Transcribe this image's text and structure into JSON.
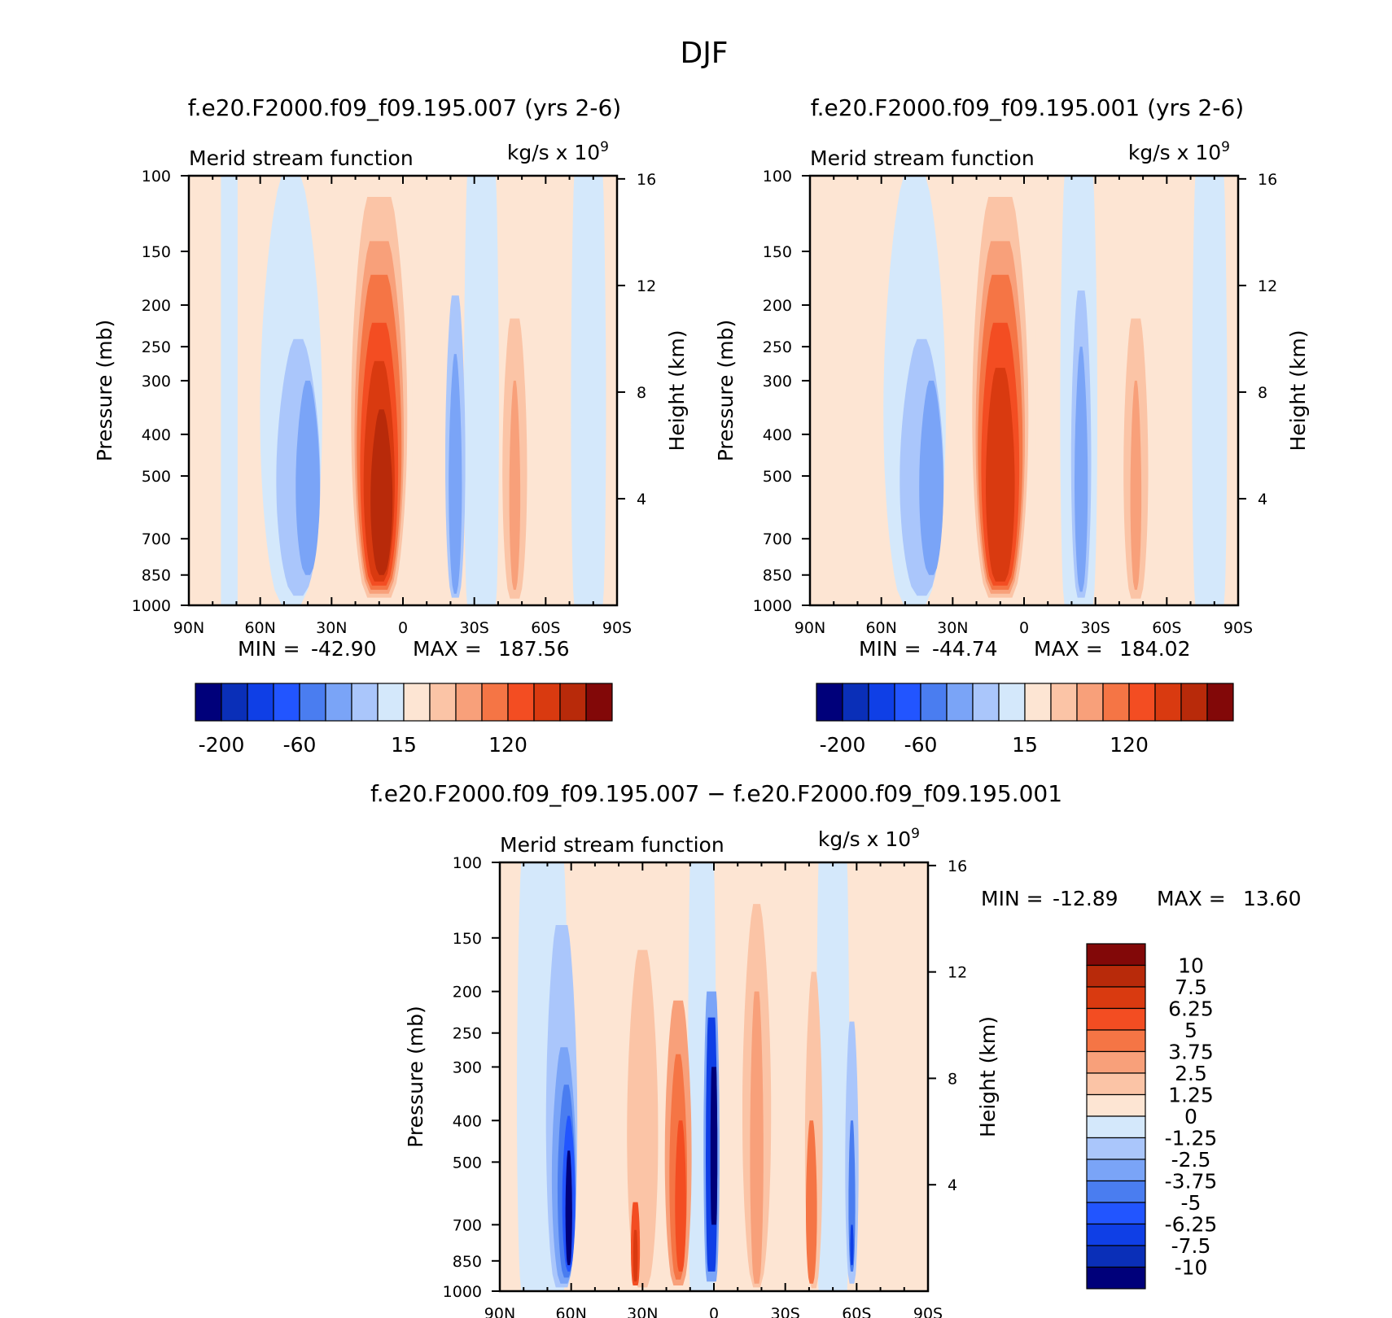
{
  "figure": {
    "title": "DJF"
  },
  "palettes": {
    "main": [
      "#00007a",
      "#0a2fb8",
      "#0f3fe6",
      "#2255ff",
      "#4a7df0",
      "#7aa4f7",
      "#aac6fb",
      "#d4e8fb",
      "#fde5d3",
      "#fbc4a6",
      "#f8a07a",
      "#f57545",
      "#f34d22",
      "#d93a10",
      "#b82a0a",
      "#820808"
    ],
    "diff": [
      "#00007a",
      "#0a2fb8",
      "#0f3fe6",
      "#2255ff",
      "#4a7df0",
      "#7aa4f7",
      "#aac6fb",
      "#d4e8fb",
      "#fde5d3",
      "#fbc4a6",
      "#f8a07a",
      "#f57545",
      "#f34d22",
      "#d93a10",
      "#b82a0a",
      "#820808"
    ]
  },
  "chart_data": [
    {
      "type": "contour",
      "title": "f.e20.F2000.f09_f09.195.007 (yrs 2-6)",
      "left_label": "Merid stream function",
      "units_text": "kg/s x 10",
      "units_exp": "9",
      "xlabel": "",
      "ylabel": "Pressure (mb)",
      "ylabel_right": "Height (km)",
      "x_ticks": [
        "90N",
        "60N",
        "30N",
        "0",
        "30S",
        "60S",
        "90S"
      ],
      "x_values": [
        90,
        60,
        30,
        0,
        -30,
        -60,
        -90
      ],
      "y_ticks": [
        "100",
        "150",
        "200",
        "250",
        "300",
        "400",
        "500",
        "700",
        "850",
        "1000"
      ],
      "y_values": [
        100,
        150,
        200,
        250,
        300,
        400,
        500,
        700,
        850,
        1000
      ],
      "height_ticks": [
        "16",
        "12",
        "8",
        "4"
      ],
      "height_values": [
        16,
        12,
        8,
        4
      ],
      "ylim": [
        1000,
        100
      ],
      "min_label": "MIN =",
      "min_value": "-42.90",
      "max_label": "MAX =",
      "max_value": "187.56",
      "colorbar_labels": [
        "-200",
        "-60",
        "15",
        "120"
      ],
      "cells": [
        {
          "lat": 73,
          "w": 7,
          "top": 100,
          "bot": 1000,
          "idx": 7,
          "top_w": 7,
          "exp": 1
        },
        {
          "lat": 47,
          "w": 28,
          "top": 100,
          "bot": 1000,
          "idx": 7,
          "top_w": 8,
          "exp": 1.5
        },
        {
          "lat": 44,
          "w": 20,
          "top": 240,
          "bot": 950,
          "idx": 6,
          "top_w": 4,
          "exp": 1.3
        },
        {
          "lat": 40,
          "w": 11,
          "top": 300,
          "bot": 850,
          "idx": 5,
          "top_w": 2,
          "exp": 1.3
        },
        {
          "lat": 12,
          "w": 32,
          "top": 100,
          "bot": 1000,
          "idx": 8,
          "top_w": 30,
          "exp": 1
        },
        {
          "lat": 10,
          "w": 25,
          "top": 112,
          "bot": 960,
          "idx": 9,
          "top_w": 10,
          "exp": 1.5
        },
        {
          "lat": 10,
          "w": 22,
          "top": 142,
          "bot": 940,
          "idx": 10,
          "top_w": 8,
          "exp": 1.5
        },
        {
          "lat": 10,
          "w": 20,
          "top": 170,
          "bot": 920,
          "idx": 11,
          "top_w": 7,
          "exp": 1.5
        },
        {
          "lat": 10,
          "w": 17,
          "top": 220,
          "bot": 900,
          "idx": 12,
          "top_w": 6,
          "exp": 1.6
        },
        {
          "lat": 10,
          "w": 14,
          "top": 270,
          "bot": 880,
          "idx": 13,
          "top_w": 4,
          "exp": 1.6
        },
        {
          "lat": 9,
          "w": 10,
          "top": 350,
          "bot": 850,
          "idx": 14,
          "top_w": 2,
          "exp": 1.5
        },
        {
          "lat": -33,
          "w": 15,
          "top": 100,
          "bot": 1000,
          "idx": 7,
          "top_w": 12,
          "exp": 1
        },
        {
          "lat": -22,
          "w": 9,
          "top": 190,
          "bot": 960,
          "idx": 6,
          "top_w": 3,
          "exp": 1.4
        },
        {
          "lat": -22,
          "w": 6,
          "top": 260,
          "bot": 940,
          "idx": 5,
          "top_w": 1,
          "exp": 1.4
        },
        {
          "lat": -47,
          "w": 11,
          "top": 215,
          "bot": 965,
          "idx": 9,
          "top_w": 4,
          "exp": 1.4
        },
        {
          "lat": -47,
          "w": 5,
          "top": 300,
          "bot": 920,
          "idx": 10,
          "top_w": 1,
          "exp": 1.3
        },
        {
          "lat": -78,
          "w": 15,
          "top": 100,
          "bot": 1000,
          "idx": 7,
          "top_w": 12,
          "exp": 1
        }
      ]
    },
    {
      "type": "contour",
      "title": "f.e20.F2000.f09_f09.195.001 (yrs 2-6)",
      "left_label": "Merid stream function",
      "units_text": "kg/s x 10",
      "units_exp": "9",
      "xlabel": "",
      "ylabel": "Pressure (mb)",
      "ylabel_right": "Height (km)",
      "x_ticks": [
        "90N",
        "60N",
        "30N",
        "0",
        "30S",
        "60S",
        "90S"
      ],
      "x_values": [
        90,
        60,
        30,
        0,
        -30,
        -60,
        -90
      ],
      "y_ticks": [
        "100",
        "150",
        "200",
        "250",
        "300",
        "400",
        "500",
        "700",
        "850",
        "1000"
      ],
      "y_values": [
        100,
        150,
        200,
        250,
        300,
        400,
        500,
        700,
        850,
        1000
      ],
      "height_ticks": [
        "16",
        "12",
        "8",
        "4"
      ],
      "height_values": [
        16,
        12,
        8,
        4
      ],
      "ylim": [
        1000,
        100
      ],
      "min_label": "MIN =",
      "min_value": "-44.74",
      "max_label": "MAX =",
      "max_value": "184.02",
      "colorbar_labels": [
        "-200",
        "-60",
        "15",
        "120"
      ],
      "cells": [
        {
          "lat": 46,
          "w": 28,
          "top": 100,
          "bot": 1000,
          "idx": 7,
          "top_w": 9,
          "exp": 1.5
        },
        {
          "lat": 43,
          "w": 20,
          "top": 240,
          "bot": 950,
          "idx": 6,
          "top_w": 4,
          "exp": 1.3
        },
        {
          "lat": 39,
          "w": 11,
          "top": 300,
          "bot": 850,
          "idx": 5,
          "top_w": 2,
          "exp": 1.3
        },
        {
          "lat": 11,
          "w": 32,
          "top": 100,
          "bot": 1000,
          "idx": 8,
          "top_w": 30,
          "exp": 1
        },
        {
          "lat": 10,
          "w": 25,
          "top": 112,
          "bot": 960,
          "idx": 9,
          "top_w": 10,
          "exp": 1.5
        },
        {
          "lat": 10,
          "w": 22,
          "top": 142,
          "bot": 940,
          "idx": 10,
          "top_w": 8,
          "exp": 1.5
        },
        {
          "lat": 10,
          "w": 20,
          "top": 170,
          "bot": 920,
          "idx": 11,
          "top_w": 7,
          "exp": 1.5
        },
        {
          "lat": 10,
          "w": 17,
          "top": 220,
          "bot": 900,
          "idx": 12,
          "top_w": 6,
          "exp": 1.6
        },
        {
          "lat": 10,
          "w": 13,
          "top": 280,
          "bot": 880,
          "idx": 13,
          "top_w": 4,
          "exp": 1.6
        },
        {
          "lat": -23,
          "w": 16,
          "top": 100,
          "bot": 1000,
          "idx": 7,
          "top_w": 12,
          "exp": 1
        },
        {
          "lat": -24,
          "w": 9,
          "top": 185,
          "bot": 960,
          "idx": 6,
          "top_w": 3,
          "exp": 1.4
        },
        {
          "lat": -24,
          "w": 6,
          "top": 250,
          "bot": 930,
          "idx": 5,
          "top_w": 1,
          "exp": 1.4
        },
        {
          "lat": -47,
          "w": 11,
          "top": 215,
          "bot": 965,
          "idx": 9,
          "top_w": 4,
          "exp": 1.4
        },
        {
          "lat": -47,
          "w": 5,
          "top": 300,
          "bot": 920,
          "idx": 10,
          "top_w": 1,
          "exp": 1.3
        },
        {
          "lat": -78,
          "w": 15,
          "top": 100,
          "bot": 1000,
          "idx": 7,
          "top_w": 12,
          "exp": 1
        }
      ]
    },
    {
      "type": "contour",
      "title": "f.e20.F2000.f09_f09.195.007 − f.e20.F2000.f09_f09.195.001",
      "left_label": "Merid stream function",
      "units_text": "kg/s x 10",
      "units_exp": "9",
      "xlabel": "",
      "ylabel": "Pressure (mb)",
      "ylabel_right": "Height (km)",
      "x_ticks": [
        "90N",
        "60N",
        "30N",
        "0",
        "30S",
        "60S",
        "90S"
      ],
      "x_values": [
        90,
        60,
        30,
        0,
        -30,
        -60,
        -90
      ],
      "y_ticks": [
        "100",
        "150",
        "200",
        "250",
        "300",
        "400",
        "500",
        "700",
        "850",
        "1000"
      ],
      "y_values": [
        100,
        150,
        200,
        250,
        300,
        400,
        500,
        700,
        850,
        1000
      ],
      "height_ticks": [
        "16",
        "12",
        "8",
        "4"
      ],
      "height_values": [
        16,
        12,
        8,
        4
      ],
      "ylim": [
        1000,
        100
      ],
      "min_label": "MIN =",
      "min_value": "-12.89",
      "max_label": "MAX =",
      "max_value": "13.60",
      "colorbar_labels": [
        "10",
        "7.5",
        "6.25",
        "5",
        "3.75",
        "2.5",
        "1.25",
        "0",
        "-1.25",
        "-2.5",
        "-3.75",
        "-5",
        "-6.25",
        "-7.5",
        "-10"
      ],
      "cells": [
        {
          "lat": 72,
          "w": 22,
          "top": 100,
          "bot": 1000,
          "idx": 7,
          "top_w": 18,
          "exp": 1
        },
        {
          "lat": 64,
          "w": 14,
          "top": 140,
          "bot": 980,
          "idx": 6,
          "top_w": 5,
          "exp": 1.4
        },
        {
          "lat": 63,
          "w": 11,
          "top": 270,
          "bot": 960,
          "idx": 5,
          "top_w": 3,
          "exp": 1.3
        },
        {
          "lat": 62,
          "w": 8,
          "top": 330,
          "bot": 930,
          "idx": 4,
          "top_w": 2,
          "exp": 1.3
        },
        {
          "lat": 61,
          "w": 6,
          "top": 390,
          "bot": 900,
          "idx": 3,
          "top_w": 1,
          "exp": 1.3
        },
        {
          "lat": 61,
          "w": 3,
          "top": 470,
          "bot": 870,
          "idx": 0,
          "top_w": 1,
          "exp": 1.2
        },
        {
          "lat": 5,
          "w": 12,
          "top": 100,
          "bot": 1000,
          "idx": 7,
          "top_w": 10,
          "exp": 1
        },
        {
          "lat": 1,
          "w": 7,
          "top": 200,
          "bot": 950,
          "idx": 5,
          "top_w": 4,
          "exp": 1.3
        },
        {
          "lat": 1,
          "w": 5,
          "top": 230,
          "bot": 900,
          "idx": 2,
          "top_w": 3,
          "exp": 1.3
        },
        {
          "lat": 0,
          "w": 3,
          "top": 300,
          "bot": 700,
          "idx": 0,
          "top_w": 2,
          "exp": 1.2
        },
        {
          "lat": -50,
          "w": 14,
          "top": 100,
          "bot": 1000,
          "idx": 7,
          "top_w": 12,
          "exp": 1
        },
        {
          "lat": -58,
          "w": 6,
          "top": 235,
          "bot": 960,
          "idx": 6,
          "top_w": 2,
          "exp": 1.3
        },
        {
          "lat": -58,
          "w": 3,
          "top": 400,
          "bot": 900,
          "idx": 4,
          "top_w": 1,
          "exp": 1.3
        },
        {
          "lat": -58,
          "w": 1.5,
          "top": 700,
          "bot": 870,
          "idx": 2,
          "top_w": 0.7,
          "exp": 1.2
        },
        {
          "lat": 30,
          "w": 14,
          "top": 160,
          "bot": 980,
          "idx": 9,
          "top_w": 4,
          "exp": 1.4
        },
        {
          "lat": 33,
          "w": 4,
          "top": 620,
          "bot": 970,
          "idx": 12,
          "top_w": 2,
          "exp": 1.2
        },
        {
          "lat": 33,
          "w": 2,
          "top": 720,
          "bot": 950,
          "idx": 13,
          "top_w": 1,
          "exp": 1.2
        },
        {
          "lat": 15,
          "w": 12,
          "top": 210,
          "bot": 970,
          "idx": 10,
          "top_w": 4,
          "exp": 1.4
        },
        {
          "lat": 15,
          "w": 8,
          "top": 280,
          "bot": 940,
          "idx": 11,
          "top_w": 2,
          "exp": 1.3
        },
        {
          "lat": 14,
          "w": 5,
          "top": 400,
          "bot": 900,
          "idx": 12,
          "top_w": 1.5,
          "exp": 1.3
        },
        {
          "lat": -18,
          "w": 13,
          "top": 125,
          "bot": 980,
          "idx": 9,
          "top_w": 3,
          "exp": 1.4
        },
        {
          "lat": -18,
          "w": 6,
          "top": 200,
          "bot": 960,
          "idx": 10,
          "top_w": 2,
          "exp": 1.3
        },
        {
          "lat": -42,
          "w": 8,
          "top": 180,
          "bot": 985,
          "idx": 9,
          "top_w": 2,
          "exp": 1.3
        },
        {
          "lat": -41,
          "w": 5,
          "top": 400,
          "bot": 960,
          "idx": 11,
          "top_w": 1.5,
          "exp": 1.3
        }
      ]
    }
  ]
}
